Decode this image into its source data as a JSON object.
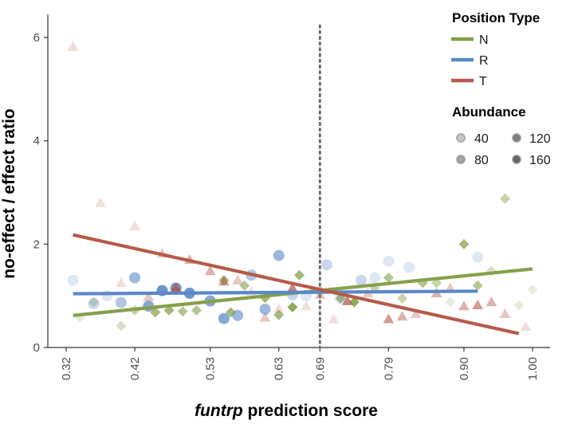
{
  "chart_data": {
    "type": "scatter",
    "title": "",
    "xlabel_italic": "funtrp",
    "xlabel_rest": " prediction score",
    "ylabel": "no-effect / effect ratio",
    "xlim": [
      0.3,
      1.02
    ],
    "ylim": [
      0,
      6.45
    ],
    "x_ticks": [
      0.32,
      0.42,
      0.53,
      0.63,
      0.69,
      0.79,
      0.9,
      1.0
    ],
    "x_tick_labels": [
      "0.32",
      "0.42",
      "0.53",
      "0.63",
      "0.69",
      "0.79",
      "0.90",
      "1.00"
    ],
    "y_ticks": [
      0,
      2,
      4,
      6
    ],
    "y_tick_labels": [
      "0",
      "2",
      "4",
      "6"
    ],
    "vline_x": 0.69,
    "grid": false,
    "legend_placement": "right",
    "series": [
      {
        "name": "N",
        "color": "#86a04a",
        "marker": "diamond",
        "fit": [
          [
            0.33,
            0.62
          ],
          [
            1.0,
            1.52
          ]
        ],
        "points": [
          [
            0.34,
            0.58,
            40
          ],
          [
            0.36,
            0.88,
            60
          ],
          [
            0.4,
            0.42,
            60
          ],
          [
            0.42,
            0.72,
            80
          ],
          [
            0.45,
            0.68,
            120
          ],
          [
            0.47,
            0.72,
            120
          ],
          [
            0.49,
            0.7,
            100
          ],
          [
            0.51,
            0.72,
            100
          ],
          [
            0.55,
            1.3,
            120
          ],
          [
            0.56,
            0.68,
            120
          ],
          [
            0.58,
            1.2,
            100
          ],
          [
            0.61,
            0.96,
            120
          ],
          [
            0.63,
            0.63,
            120
          ],
          [
            0.65,
            0.78,
            160
          ],
          [
            0.66,
            1.4,
            120
          ],
          [
            0.69,
            1.1,
            80
          ],
          [
            0.72,
            0.95,
            120
          ],
          [
            0.74,
            0.88,
            160
          ],
          [
            0.77,
            1.15,
            80
          ],
          [
            0.79,
            1.35,
            100
          ],
          [
            0.81,
            0.95,
            80
          ],
          [
            0.84,
            1.25,
            100
          ],
          [
            0.86,
            1.25,
            80
          ],
          [
            0.88,
            0.88,
            40
          ],
          [
            0.9,
            2.0,
            120
          ],
          [
            0.92,
            1.2,
            100
          ],
          [
            0.94,
            1.48,
            60
          ],
          [
            0.96,
            2.88,
            80
          ],
          [
            0.98,
            0.82,
            40
          ],
          [
            1.0,
            1.12,
            40
          ]
        ]
      },
      {
        "name": "R",
        "color": "#5a88c8",
        "marker": "circle",
        "fit": [
          [
            0.33,
            1.04
          ],
          [
            0.92,
            1.09
          ]
        ],
        "points": [
          [
            0.33,
            1.3,
            40
          ],
          [
            0.36,
            0.85,
            60
          ],
          [
            0.38,
            1.0,
            40
          ],
          [
            0.4,
            0.87,
            80
          ],
          [
            0.42,
            1.35,
            100
          ],
          [
            0.44,
            0.8,
            120
          ],
          [
            0.46,
            1.1,
            160
          ],
          [
            0.48,
            1.15,
            160
          ],
          [
            0.5,
            1.05,
            160
          ],
          [
            0.53,
            0.9,
            120
          ],
          [
            0.55,
            0.56,
            120
          ],
          [
            0.57,
            0.62,
            100
          ],
          [
            0.59,
            1.4,
            80
          ],
          [
            0.61,
            0.74,
            100
          ],
          [
            0.63,
            1.78,
            100
          ],
          [
            0.65,
            1.02,
            60
          ],
          [
            0.67,
            1.0,
            40
          ],
          [
            0.7,
            1.6,
            60
          ],
          [
            0.72,
            0.95,
            40
          ],
          [
            0.75,
            1.3,
            60
          ],
          [
            0.77,
            1.35,
            40
          ],
          [
            0.79,
            1.67,
            40
          ],
          [
            0.82,
            1.55,
            40
          ],
          [
            0.92,
            1.75,
            40
          ]
        ]
      },
      {
        "name": "T",
        "color": "#b65a4a",
        "marker": "triangle",
        "fit": [
          [
            0.33,
            2.18
          ],
          [
            0.98,
            0.27
          ]
        ],
        "points": [
          [
            0.33,
            5.82,
            40
          ],
          [
            0.37,
            2.8,
            40
          ],
          [
            0.4,
            1.25,
            40
          ],
          [
            0.42,
            2.35,
            40
          ],
          [
            0.44,
            0.98,
            60
          ],
          [
            0.46,
            1.82,
            60
          ],
          [
            0.48,
            1.15,
            160
          ],
          [
            0.5,
            1.7,
            80
          ],
          [
            0.53,
            1.48,
            80
          ],
          [
            0.55,
            1.28,
            100
          ],
          [
            0.57,
            1.3,
            60
          ],
          [
            0.59,
            1.08,
            40
          ],
          [
            0.61,
            0.58,
            60
          ],
          [
            0.63,
            0.75,
            40
          ],
          [
            0.65,
            1.15,
            120
          ],
          [
            0.67,
            0.8,
            40
          ],
          [
            0.69,
            1.02,
            60
          ],
          [
            0.71,
            0.55,
            40
          ],
          [
            0.73,
            0.9,
            120
          ],
          [
            0.76,
            1.05,
            60
          ],
          [
            0.79,
            0.55,
            100
          ],
          [
            0.81,
            0.6,
            80
          ],
          [
            0.83,
            0.65,
            60
          ],
          [
            0.86,
            1.05,
            80
          ],
          [
            0.88,
            1.15,
            60
          ],
          [
            0.9,
            0.8,
            80
          ],
          [
            0.92,
            0.82,
            100
          ],
          [
            0.94,
            0.88,
            80
          ],
          [
            0.96,
            0.65,
            60
          ],
          [
            0.99,
            0.4,
            40
          ]
        ]
      }
    ],
    "legend": {
      "position_type_title": "Position Type",
      "abundance_title": "Abundance",
      "abundance_levels": [
        40,
        80,
        120,
        160
      ]
    }
  }
}
